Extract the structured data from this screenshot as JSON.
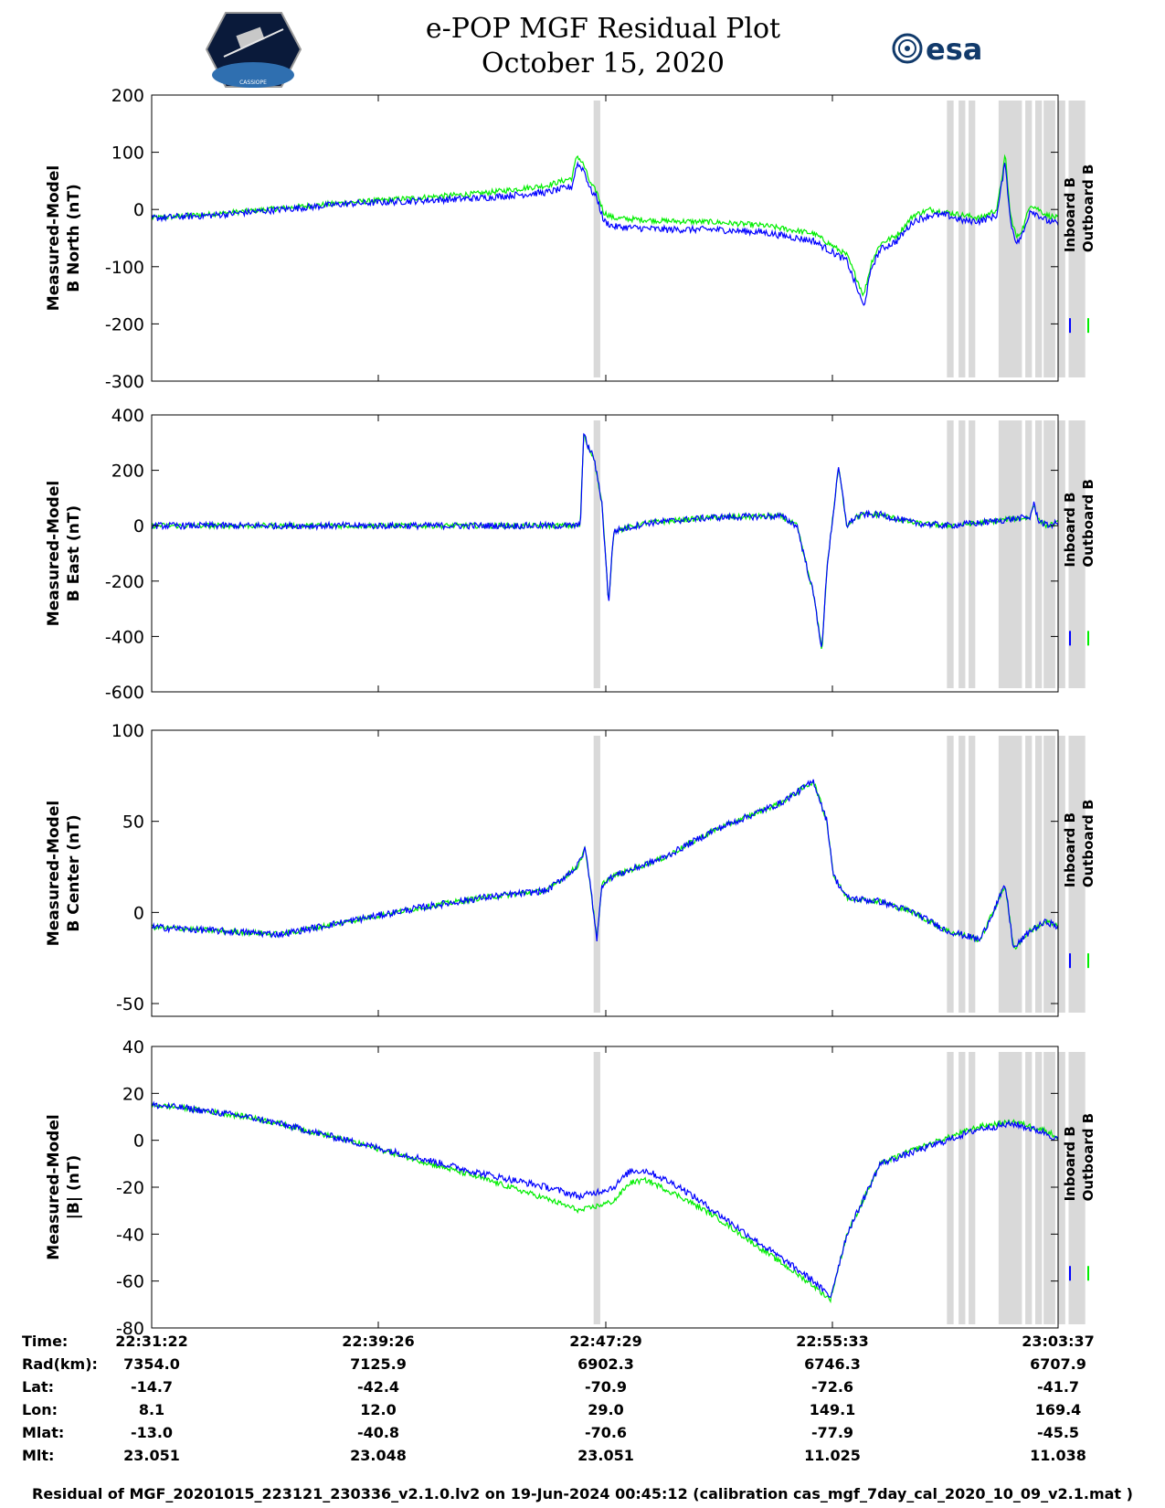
{
  "header": {
    "title_line1": "e-POP MGF Residual Plot",
    "title_line2": "October 15, 2020",
    "logo_left_text": "CASSIOPE",
    "logo_right_text": "esa"
  },
  "colors": {
    "inboard": "#0000ff",
    "outboard": "#00ee00",
    "shade": "#d9d9d9"
  },
  "legend": {
    "inboard": "Inboard B",
    "outboard": "Outboard B"
  },
  "shaded_intervals": [
    [
      22.788,
      22.792
    ],
    [
      23.0,
      23.004
    ],
    [
      23.007,
      23.011
    ],
    [
      23.013,
      23.017
    ],
    [
      23.031,
      23.045
    ],
    [
      23.047,
      23.051
    ],
    [
      23.053,
      23.057
    ],
    [
      23.058,
      23.065
    ],
    [
      23.067,
      23.071
    ],
    [
      23.073,
      23.083
    ]
  ],
  "chart_data": [
    {
      "type": "line",
      "ylabel": "Measured-Model B North (nT)",
      "ylabel_lines": [
        "Measured-Model",
        "B North (nT)"
      ],
      "ylim": [
        -300,
        200
      ],
      "yticks": [
        200,
        100,
        0,
        -100,
        -200,
        -300
      ],
      "xlim": [
        22.5228,
        23.0667
      ],
      "series": [
        {
          "name": "Inboard B",
          "x": [
            22.523,
            22.56,
            22.6,
            22.64,
            22.68,
            22.72,
            22.76,
            22.775,
            22.778,
            22.782,
            22.786,
            22.79,
            22.794,
            22.8,
            22.83,
            22.86,
            22.89,
            22.92,
            22.94,
            22.95,
            22.955,
            22.96,
            22.97,
            22.98,
            22.99,
            23.0,
            23.01,
            23.02,
            23.03,
            23.035,
            23.038,
            23.042,
            23.046,
            23.05,
            23.055,
            23.06,
            23.0667
          ],
          "values": [
            -15,
            -10,
            0,
            10,
            15,
            20,
            30,
            40,
            80,
            70,
            35,
            20,
            -20,
            -30,
            -35,
            -35,
            -40,
            -55,
            -90,
            -170,
            -100,
            -70,
            -55,
            -20,
            -10,
            -10,
            -20,
            -20,
            -10,
            85,
            -20,
            -60,
            -40,
            0,
            -10,
            -20,
            -25
          ]
        },
        {
          "name": "Outboard B",
          "x": [
            22.523,
            22.56,
            22.6,
            22.64,
            22.68,
            22.72,
            22.76,
            22.775,
            22.778,
            22.782,
            22.786,
            22.79,
            22.794,
            22.8,
            22.83,
            22.86,
            22.89,
            22.92,
            22.94,
            22.95,
            22.955,
            22.96,
            22.97,
            22.98,
            22.99,
            23.0,
            23.01,
            23.02,
            23.03,
            23.035,
            23.038,
            23.042,
            23.046,
            23.05,
            23.055,
            23.06,
            23.0667
          ],
          "values": [
            -15,
            -8,
            2,
            12,
            20,
            28,
            42,
            55,
            95,
            78,
            45,
            30,
            -5,
            -15,
            -20,
            -22,
            -28,
            -42,
            -80,
            -150,
            -90,
            -60,
            -45,
            -10,
            0,
            -5,
            -10,
            -15,
            0,
            95,
            -10,
            -50,
            -30,
            10,
            0,
            -10,
            -15
          ]
        }
      ],
      "xticks": [
        "22:31:22",
        "22:39:26",
        "22:47:29",
        "22:55:33",
        "23:03:37"
      ]
    },
    {
      "type": "line",
      "ylabel": "Measured-Model B East (nT)",
      "ylabel_lines": [
        "Measured-Model",
        "B East (nT)"
      ],
      "ylim": [
        -600,
        400
      ],
      "yticks": [
        400,
        200,
        0,
        -200,
        -400,
        -600
      ],
      "xlim": [
        22.5228,
        23.0667
      ],
      "series": [
        {
          "name": "Inboard B",
          "x": [
            22.523,
            22.6,
            22.7,
            22.78,
            22.782,
            22.785,
            22.788,
            22.793,
            22.797,
            22.8,
            22.82,
            22.86,
            22.9,
            22.91,
            22.92,
            22.925,
            22.928,
            22.935,
            22.94,
            22.945,
            22.95,
            22.96,
            22.98,
            23.0,
            23.02,
            23.04,
            23.05,
            23.052,
            23.055,
            23.06,
            23.0667
          ],
          "values": [
            0,
            0,
            0,
            0,
            330,
            280,
            250,
            80,
            -280,
            -20,
            10,
            30,
            35,
            0,
            -250,
            -450,
            -150,
            210,
            0,
            30,
            40,
            40,
            10,
            0,
            10,
            25,
            30,
            80,
            20,
            0,
            10
          ]
        },
        {
          "name": "Outboard B",
          "x": [
            22.523,
            22.6,
            22.7,
            22.78,
            22.782,
            22.785,
            22.788,
            22.793,
            22.797,
            22.8,
            22.82,
            22.86,
            22.9,
            22.91,
            22.92,
            22.925,
            22.928,
            22.935,
            22.94,
            22.945,
            22.95,
            22.96,
            22.98,
            23.0,
            23.02,
            23.04,
            23.05,
            23.052,
            23.055,
            23.06,
            23.0667
          ],
          "values": [
            0,
            0,
            0,
            0,
            330,
            280,
            250,
            80,
            -280,
            -20,
            10,
            30,
            35,
            0,
            -250,
            -450,
            -150,
            210,
            0,
            30,
            40,
            40,
            10,
            0,
            10,
            25,
            30,
            80,
            20,
            0,
            10
          ]
        }
      ],
      "xticks": [
        "22:31:22",
        "22:39:26",
        "22:47:29",
        "22:55:33",
        "23:03:37"
      ]
    },
    {
      "type": "line",
      "ylabel": "Measured-Model B Center (nT)",
      "ylabel_lines": [
        "Measured-Model",
        "B Center (nT)"
      ],
      "ylim": [
        -57,
        100
      ],
      "yticks": [
        100,
        50,
        0,
        -50
      ],
      "xlim": [
        22.5228,
        23.0667
      ],
      "series": [
        {
          "name": "Inboard B",
          "x": [
            22.523,
            22.56,
            22.6,
            22.64,
            22.68,
            22.72,
            22.76,
            22.778,
            22.783,
            22.786,
            22.79,
            22.793,
            22.796,
            22.8,
            22.83,
            22.86,
            22.9,
            22.92,
            22.928,
            22.932,
            22.94,
            22.96,
            22.98,
            23.0,
            23.02,
            23.035,
            23.04,
            23.05,
            23.06,
            23.0667
          ],
          "values": [
            -8,
            -10,
            -12,
            -5,
            2,
            8,
            12,
            25,
            35,
            15,
            -15,
            15,
            18,
            20,
            30,
            45,
            60,
            72,
            50,
            20,
            8,
            6,
            0,
            -10,
            -15,
            15,
            -20,
            -10,
            -5,
            -8
          ]
        },
        {
          "name": "Outboard B",
          "x": [
            22.523,
            22.56,
            22.6,
            22.64,
            22.68,
            22.72,
            22.76,
            22.778,
            22.783,
            22.786,
            22.79,
            22.793,
            22.796,
            22.8,
            22.83,
            22.86,
            22.9,
            22.92,
            22.928,
            22.932,
            22.94,
            22.96,
            22.98,
            23.0,
            23.02,
            23.035,
            23.04,
            23.05,
            23.06,
            23.0667
          ],
          "values": [
            -8,
            -10,
            -12,
            -5,
            2,
            8,
            12,
            25,
            35,
            15,
            -15,
            15,
            18,
            20,
            30,
            45,
            60,
            72,
            50,
            20,
            8,
            6,
            0,
            -10,
            -15,
            15,
            -20,
            -10,
            -5,
            -8
          ]
        }
      ],
      "xticks": [
        "22:31:22",
        "22:39:26",
        "22:47:29",
        "22:55:33",
        "23:03:37"
      ]
    },
    {
      "type": "line",
      "ylabel": "Measured-Model |B| (nT)",
      "ylabel_lines": [
        "Measured-Model",
        "|B| (nT)"
      ],
      "ylim": [
        -80,
        40
      ],
      "yticks": [
        40,
        20,
        0,
        -20,
        -40,
        -60,
        -80
      ],
      "xlim": [
        22.5228,
        23.0667
      ],
      "series": [
        {
          "name": "Inboard B",
          "x": [
            22.523,
            22.54,
            22.56,
            22.58,
            22.6,
            22.64,
            22.68,
            22.72,
            22.76,
            22.78,
            22.8,
            22.81,
            22.82,
            22.84,
            22.86,
            22.88,
            22.9,
            22.92,
            22.93,
            22.94,
            22.96,
            22.98,
            23.0,
            23.02,
            23.04,
            23.06,
            23.0667
          ],
          "values": [
            15,
            14,
            12,
            10,
            7,
            0,
            -7,
            -14,
            -20,
            -24,
            -20,
            -13,
            -13,
            -20,
            -30,
            -40,
            -50,
            -60,
            -67,
            -40,
            -10,
            -5,
            0,
            5,
            7,
            3,
            0
          ]
        },
        {
          "name": "Outboard B",
          "x": [
            22.523,
            22.54,
            22.56,
            22.58,
            22.6,
            22.64,
            22.68,
            22.72,
            22.76,
            22.78,
            22.8,
            22.81,
            22.82,
            22.84,
            22.86,
            22.88,
            22.9,
            22.92,
            22.93,
            22.94,
            22.96,
            22.98,
            23.0,
            23.02,
            23.04,
            23.06,
            23.0667
          ],
          "values": [
            15,
            14,
            12,
            10,
            7,
            0,
            -8,
            -16,
            -25,
            -30,
            -26,
            -18,
            -17,
            -24,
            -32,
            -42,
            -52,
            -62,
            -68,
            -40,
            -10,
            -4,
            1,
            6,
            8,
            4,
            1
          ]
        }
      ],
      "xticks": [
        "22:31:22",
        "22:39:26",
        "22:47:29",
        "22:55:33",
        "23:03:37"
      ]
    }
  ],
  "ephemeris": {
    "labels": [
      "Time:",
      "Rad(km):",
      "Lat:",
      "Lon:",
      "Mlat:",
      "Mlt:"
    ],
    "columns": [
      [
        "22:31:22",
        "7354.0",
        "-14.7",
        "8.1",
        "-13.0",
        "23.051"
      ],
      [
        "22:39:26",
        "7125.9",
        "-42.4",
        "12.0",
        "-40.8",
        "23.048"
      ],
      [
        "22:47:29",
        "6902.3",
        "-70.9",
        "29.0",
        "-70.6",
        "23.051"
      ],
      [
        "22:55:33",
        "6746.3",
        "-72.6",
        "149.1",
        "-77.9",
        "11.025"
      ],
      [
        "23:03:37",
        "6707.9",
        "-41.7",
        "169.4",
        "-45.5",
        "11.038"
      ]
    ]
  },
  "footer": "Residual of MGF_20201015_223121_230336_v2.1.0.lv2 on 19-Jun-2024 00:45:12 (calibration cas_mgf_7day_cal_2020_10_09_v2.1.mat )"
}
